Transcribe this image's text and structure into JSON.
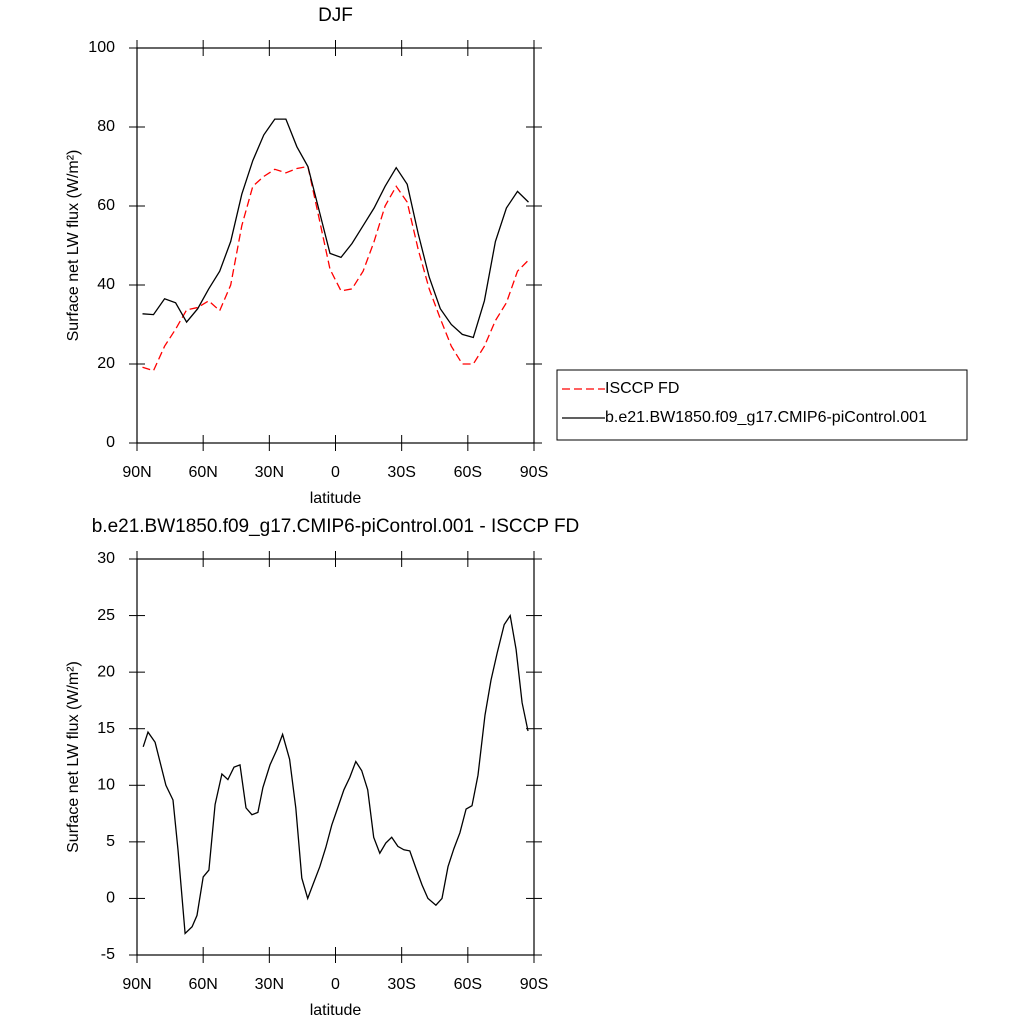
{
  "chart_data": [
    {
      "type": "line",
      "title": "DJF",
      "xlabel": "latitude",
      "ylabel": "Surface net LW flux (W/m²)",
      "x": [
        87.5,
        82.5,
        77.5,
        72.5,
        67.5,
        62.5,
        57.5,
        52.5,
        47.5,
        42.5,
        37.5,
        32.5,
        27.5,
        22.5,
        17.5,
        12.5,
        7.5,
        2.5,
        -2.5,
        -7.5,
        -12.5,
        -17.5,
        -22.5,
        -27.5,
        -32.5,
        -37.5,
        -42.5,
        -47.5,
        -52.5,
        -57.5,
        -62.5,
        -67.5,
        -72.5,
        -77.5,
        -82.5,
        -87.5
      ],
      "series": [
        {
          "name": "ISCCP FD",
          "color": "#ff0000",
          "linestyle": "dashed",
          "values": [
            19.2,
            18.3,
            24.5,
            28.8,
            33.7,
            34.3,
            36,
            33.5,
            40,
            55,
            65,
            67.5,
            69.3,
            68.4,
            69.5,
            70,
            57,
            44,
            38.5,
            39,
            43.5,
            51,
            60,
            65,
            61,
            49,
            39,
            31.5,
            24.5,
            20,
            20,
            24.5,
            31,
            35.5,
            43.5,
            46.3
          ]
        },
        {
          "name": "b.e21.BW1850.f09_g17.CMIP6-piControl.001",
          "color": "#000000",
          "linestyle": "solid",
          "values": [
            32.7,
            32.5,
            36.5,
            35.5,
            30.6,
            34,
            39,
            43.5,
            51,
            63,
            71.5,
            78,
            82,
            82,
            75,
            70,
            59,
            48,
            47,
            50.5,
            55,
            59.5,
            65,
            69.7,
            65.5,
            53,
            42,
            34,
            30,
            27.5,
            26.7,
            36,
            51,
            59.5,
            63.7,
            61
          ]
        }
      ],
      "xlim": [
        90,
        -90
      ],
      "xticks": [
        {
          "value": 90,
          "label": "90N"
        },
        {
          "value": 60,
          "label": "60N"
        },
        {
          "value": 30,
          "label": "30N"
        },
        0,
        {
          "value": -30,
          "label": "30S"
        },
        {
          "value": -60,
          "label": "60S"
        },
        {
          "value": -90,
          "label": "90S"
        }
      ],
      "ylim": [
        0,
        100
      ],
      "yticks": [
        0,
        20,
        40,
        60,
        80,
        100
      ],
      "legend": "right"
    },
    {
      "type": "line",
      "title": "b.e21.BW1850.f09_g17.CMIP6-piControl.001 - ISCCP FD",
      "xlabel": "latitude",
      "ylabel": "Surface net LW flux (W/m²)",
      "x": [
        87.2,
        85,
        81.8,
        76.9,
        73.7,
        71.4,
        68.2,
        65,
        62.8,
        60,
        57.4,
        54.6,
        51.5,
        48.8,
        46,
        43.3,
        40.6,
        37.9,
        35.2,
        32.9,
        29.7,
        26.5,
        24,
        20.8,
        18,
        15.3,
        12.6,
        9.9,
        7.1,
        4.4,
        1.7,
        -1,
        -3.8,
        -6.5,
        -9.2,
        -11.9,
        -14.6,
        -17.3,
        -20.1,
        -22.8,
        -25.5,
        -28.3,
        -31,
        -33.7,
        -36.4,
        -39.2,
        -41.9,
        -45.5,
        -48.3,
        -51,
        -53.7,
        -56.4,
        -59.2,
        -61.9,
        -64.6,
        -67.8,
        -70.5,
        -73.3,
        -76.5,
        -79.2,
        -81.9,
        -84.6,
        -87.3
      ],
      "series": [
        {
          "color": "#000000",
          "linestyle": "solid",
          "values": [
            13.4,
            14.7,
            13.8,
            10,
            8.7,
            4.3,
            -3.1,
            -2.5,
            -1.5,
            1.9,
            2.5,
            8.3,
            11,
            10.5,
            11.6,
            11.8,
            8,
            7.4,
            7.6,
            9.8,
            11.8,
            13.2,
            14.5,
            12.3,
            8,
            1.8,
            0,
            1.4,
            2.8,
            4.5,
            6.5,
            8,
            9.6,
            10.7,
            12.1,
            11.3,
            9.6,
            5.4,
            4,
            4.9,
            5.4,
            4.6,
            4.3,
            4.2,
            2.7,
            1.2,
            0,
            -0.6,
            0,
            2.8,
            4.4,
            5.8,
            7.9,
            8.2,
            10.9,
            16.2,
            19.3,
            21.7,
            24.2,
            25,
            22,
            17.3,
            14.8
          ]
        }
      ],
      "xlim": [
        90,
        -90
      ],
      "xticks": [
        {
          "value": 90,
          "label": "90N"
        },
        {
          "value": 60,
          "label": "60N"
        },
        {
          "value": 30,
          "label": "30N"
        },
        0,
        {
          "value": -30,
          "label": "30S"
        },
        {
          "value": -60,
          "label": "60S"
        },
        {
          "value": -90,
          "label": "90S"
        }
      ],
      "ylim": [
        -5,
        30
      ],
      "yticks": [
        -5,
        0,
        5,
        10,
        15,
        20,
        25,
        30
      ]
    }
  ]
}
